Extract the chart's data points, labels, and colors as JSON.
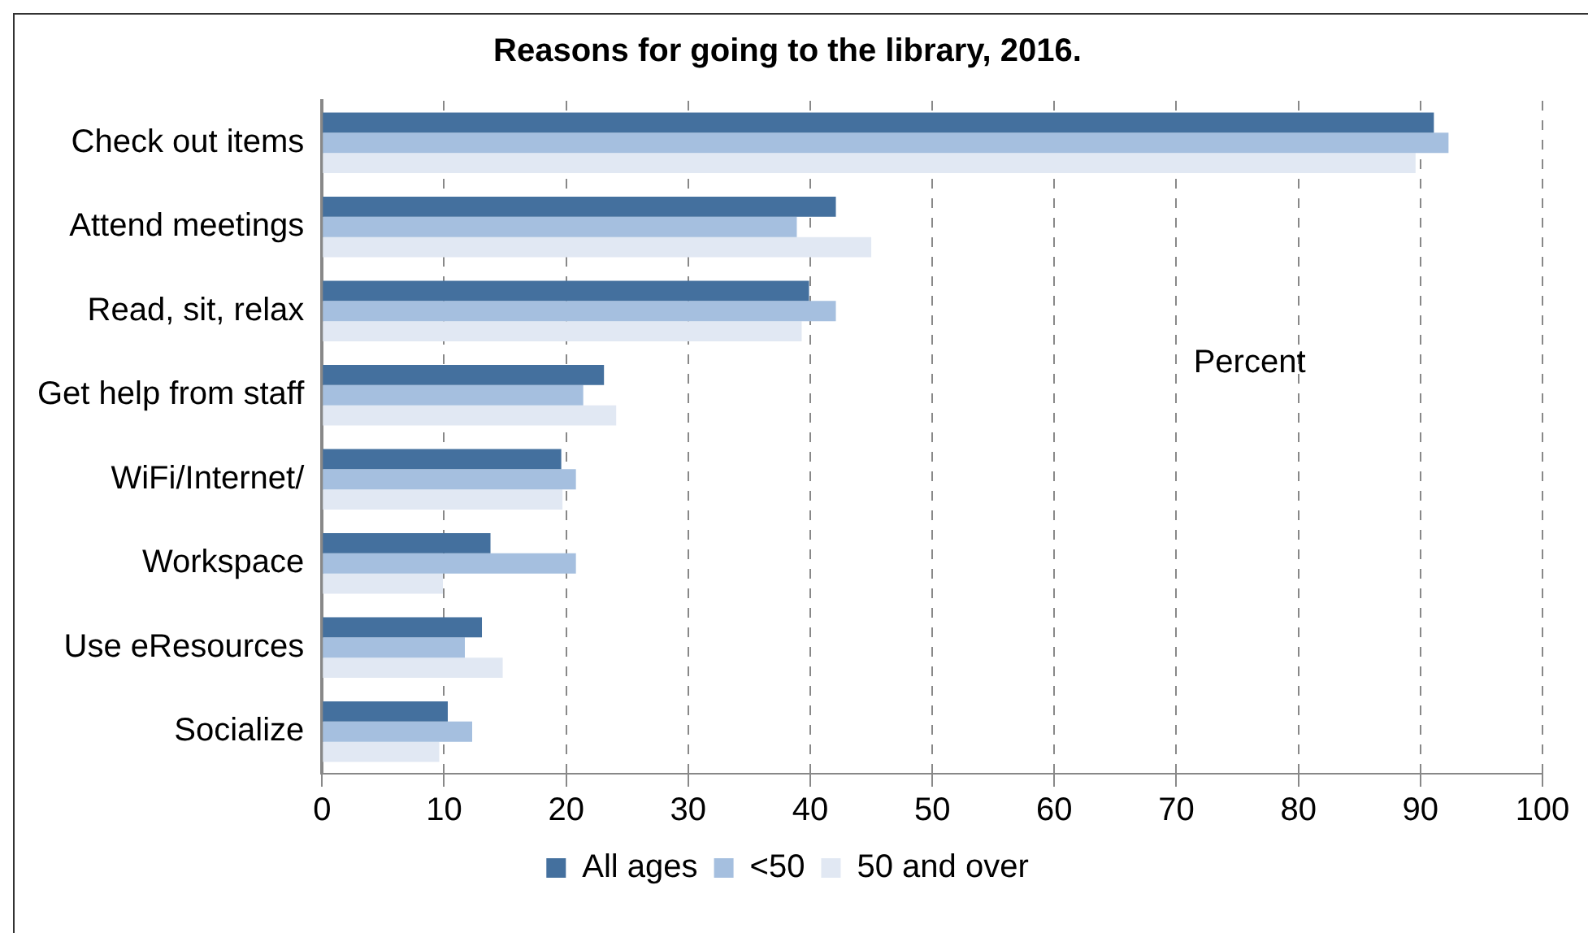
{
  "chart_data": {
    "type": "bar",
    "orientation": "horizontal",
    "title": "Reasons for going to the library, 2016.",
    "categories": [
      "Check out items",
      "Attend meetings",
      "Read, sit, relax",
      "Get help from staff",
      "WiFi/Internet/",
      "Workspace",
      "Use eResources",
      "Socialize"
    ],
    "series": [
      {
        "name": "All ages",
        "color": "#44709e",
        "values": [
          91.1,
          42.1,
          39.9,
          23.1,
          19.6,
          13.8,
          13.1,
          10.3
        ]
      },
      {
        "name": "<50",
        "color": "#a5bfdf",
        "values": [
          92.3,
          38.9,
          42.1,
          21.4,
          20.8,
          20.8,
          11.7,
          12.3
        ]
      },
      {
        "name": "50 and over",
        "color": "#e1e8f3",
        "values": [
          89.6,
          45.0,
          39.3,
          24.1,
          19.7,
          9.9,
          14.8,
          9.6
        ]
      }
    ],
    "xlim": [
      0,
      100
    ],
    "xticks": [
      0,
      10,
      20,
      30,
      40,
      50,
      60,
      70,
      80,
      90,
      100
    ],
    "grid": "x",
    "legend": "bottom",
    "annotations": [
      "Percent"
    ]
  }
}
